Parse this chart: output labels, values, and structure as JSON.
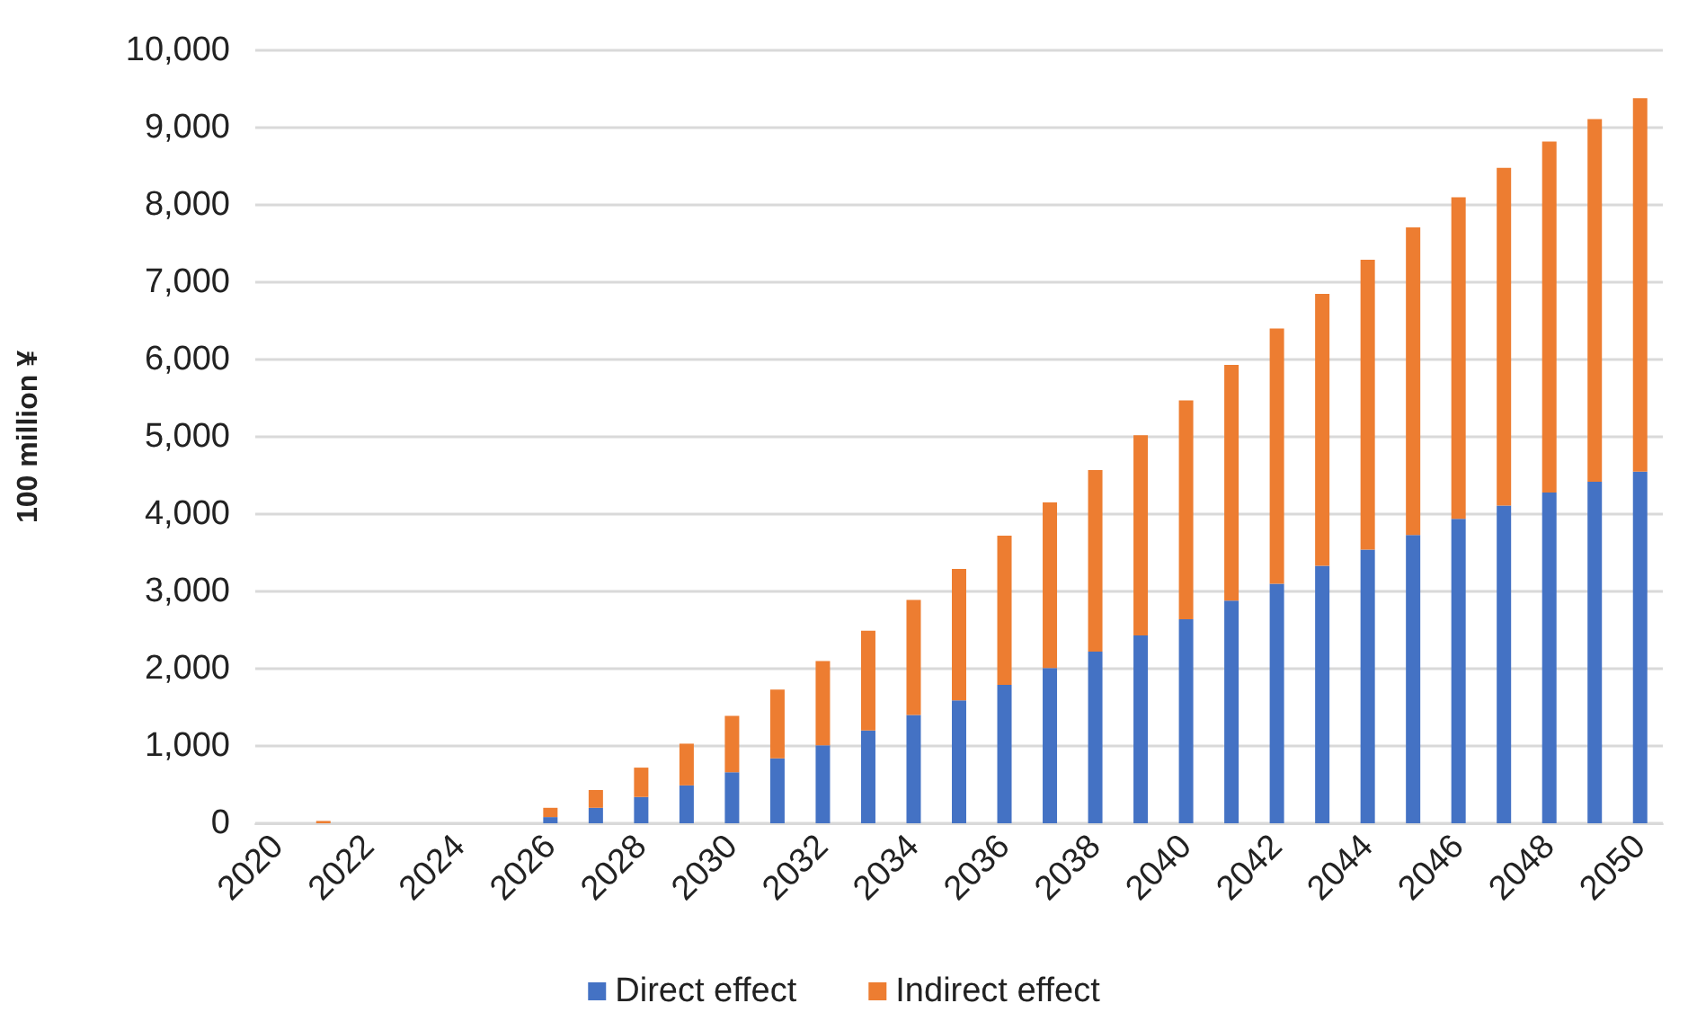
{
  "chart_data": {
    "type": "bar",
    "stacked": true,
    "ylabel": "100 million ¥",
    "categories": [
      "2020",
      null,
      "2022",
      null,
      "2024",
      null,
      "2026",
      null,
      "2028",
      null,
      "2030",
      null,
      "2032",
      null,
      "2034",
      null,
      "2036",
      null,
      "2038",
      null,
      "2040",
      null,
      "2042",
      null,
      "2044",
      null,
      "2046",
      null,
      "2048",
      null,
      "2050"
    ],
    "series": [
      {
        "name": "Direct effect",
        "color": "#4472c4",
        "values": [
          0,
          0,
          0,
          0,
          0,
          0,
          80,
          200,
          340,
          490,
          660,
          840,
          1010,
          1200,
          1400,
          1590,
          1790,
          2010,
          2220,
          2430,
          2640,
          2880,
          3100,
          3330,
          3540,
          3730,
          3940,
          4110,
          4280,
          4420,
          4550
        ]
      },
      {
        "name": "Indirect effect",
        "color": "#ed7d31",
        "values": [
          0,
          30,
          0,
          0,
          0,
          0,
          120,
          230,
          380,
          540,
          730,
          890,
          1090,
          1290,
          1490,
          1700,
          1930,
          2140,
          2350,
          2590,
          2830,
          3050,
          3300,
          3520,
          3750,
          3980,
          4160,
          4370,
          4540,
          4690,
          4830
        ]
      }
    ],
    "ylim": [
      0,
      10000
    ],
    "yticks": [
      0,
      {
        "value": 1000,
        "label": "1,000"
      },
      {
        "value": 2000,
        "label": "2,000"
      },
      {
        "value": 3000,
        "label": "3,000"
      },
      {
        "value": 4000,
        "label": "4,000"
      },
      {
        "value": 5000,
        "label": "5,000"
      },
      {
        "value": 6000,
        "label": "6,000"
      },
      {
        "value": 7000,
        "label": "7,000"
      },
      {
        "value": 8000,
        "label": "8,000"
      },
      {
        "value": 9000,
        "label": "9,000"
      },
      {
        "value": 10000,
        "label": "10,000"
      }
    ],
    "grid": "y",
    "legend": "bottom"
  }
}
